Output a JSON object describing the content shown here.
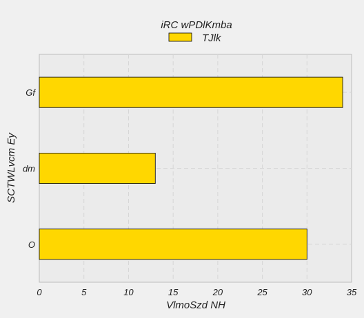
{
  "chart_data": {
    "type": "bar",
    "orientation": "horizontal",
    "legend_title": "iRC  wPDlKmba",
    "series": [
      {
        "name": "TJlk",
        "color": "#ffd700",
        "values": [
          30,
          13,
          34
        ]
      }
    ],
    "categories": [
      "O",
      "dm",
      "Gf"
    ],
    "xlabel": "VlmoSzd NH",
    "ylabel": "SCTWLvcm Ey",
    "xlim": [
      0,
      35
    ],
    "xticks": [
      "0",
      "5",
      "10",
      "15",
      "20",
      "25",
      "30",
      "35"
    ],
    "grid": true,
    "legend_position": "top-center",
    "colors": {
      "background": "#f0f0f0",
      "plot_background": "#ebebeb",
      "grid": "#d6d6d6",
      "bar_edge": "#000000"
    }
  }
}
